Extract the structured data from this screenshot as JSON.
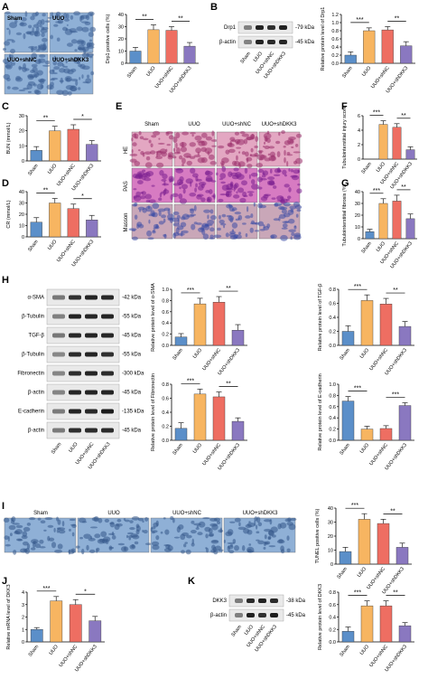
{
  "panels": {
    "A": "A",
    "B": "B",
    "C": "C",
    "D": "D",
    "E": "E",
    "F": "F",
    "G": "G",
    "H": "H",
    "I": "I",
    "J": "J",
    "K": "K"
  },
  "colors": {
    "sham": "#5b8fc9",
    "uuo": "#f7b561",
    "shnc": "#ee6e62",
    "shdkk3": "#8a78c0",
    "stain_blue": "#8fb0d6",
    "he": "#c9709e",
    "masson": "#6c7fb8"
  },
  "groups": [
    "Sham",
    "UUO",
    "UUO+shNC",
    "UUO+shDKK3"
  ],
  "micro_labels": {
    "A": [
      "Sham",
      "UUO",
      "UUO+shNC",
      "UUO+shDKK3"
    ],
    "E_cols": [
      "Sham",
      "UUO",
      "UUO+shNC",
      "UUO+shDKK3"
    ],
    "E_rows": [
      "HE",
      "PAS",
      "Masson"
    ],
    "I": [
      "Sham",
      "UUO",
      "UUO+shNC",
      "UUO+shDKK3"
    ]
  },
  "blots": {
    "B": {
      "rows": [
        {
          "name": "Drp1",
          "kda": "-79 kDa"
        },
        {
          "name": "β-actin",
          "kda": "-45 kDa"
        }
      ]
    },
    "H": {
      "rows": [
        {
          "name": "α-SMA",
          "kda": "-42 kDa"
        },
        {
          "name": "β-Tubulin",
          "kda": "-55 kDa"
        },
        {
          "name": "TGF-β",
          "kda": "-45 kDa"
        },
        {
          "name": "β-Tubulin",
          "kda": "-55 kDa"
        },
        {
          "name": "Fibronectin",
          "kda": "-300 kDa"
        },
        {
          "name": "β-actin",
          "kda": "-45 kDa"
        },
        {
          "name": "E-cadherin",
          "kda": "-135 kDa"
        },
        {
          "name": "β-actin",
          "kda": "-45 kDa"
        }
      ]
    },
    "K": {
      "rows": [
        {
          "name": "DKK3",
          "kda": "-38 kDa"
        },
        {
          "name": "β-actin",
          "kda": "-45 kDa"
        }
      ]
    }
  },
  "chart_data": [
    {
      "id": "A",
      "type": "bar",
      "categories": [
        "Sham",
        "UUO",
        "UUO+shNC",
        "UUO+shDKK3"
      ],
      "values": [
        10,
        27.5,
        27,
        14
      ],
      "errors": [
        3,
        4,
        3,
        3
      ],
      "ylabel": "Drp1 positive cells (%)",
      "ylim": [
        0,
        40
      ],
      "yticks": [
        "0",
        "10",
        "20",
        "30",
        "40"
      ],
      "sig": [
        {
          "a": 0,
          "b": 1,
          "t": "**"
        },
        {
          "a": 2,
          "b": 3,
          "t": "**"
        }
      ]
    },
    {
      "id": "B",
      "type": "bar",
      "categories": [
        "Sham",
        "UUO",
        "UUO+shNC",
        "UUO+shDKK3"
      ],
      "values": [
        0.2,
        0.8,
        0.82,
        0.43
      ],
      "errors": [
        0.08,
        0.07,
        0.08,
        0.1
      ],
      "ylabel": "Relative protein level of Drp1",
      "ylim": [
        0,
        1.2
      ],
      "yticks": [
        "0.0",
        "0.2",
        "0.4",
        "0.6",
        "0.8",
        "1.0",
        "1.2"
      ],
      "sig": [
        {
          "a": 0,
          "b": 1,
          "t": "***"
        },
        {
          "a": 2,
          "b": 3,
          "t": "**"
        }
      ]
    },
    {
      "id": "C",
      "type": "bar",
      "categories": [
        "Sham",
        "UUO",
        "UUO+shNC",
        "UUO+shDKK3"
      ],
      "values": [
        7,
        20,
        21,
        11
      ],
      "errors": [
        2.5,
        3,
        3,
        2.5
      ],
      "ylabel": "BUN (mmol/L)",
      "ylim": [
        0,
        30
      ],
      "yticks": [
        "0",
        "10",
        "20",
        "30"
      ],
      "sig": [
        {
          "a": 0,
          "b": 1,
          "t": "**"
        },
        {
          "a": 2,
          "b": 3,
          "t": "*"
        }
      ]
    },
    {
      "id": "D",
      "type": "bar",
      "categories": [
        "Sham",
        "UUO",
        "UUO+shNC",
        "UUO+shDKK3"
      ],
      "values": [
        13,
        30,
        25,
        15
      ],
      "errors": [
        4,
        4,
        4,
        4
      ],
      "ylabel": "CR (mmol/L)",
      "ylim": [
        0,
        40
      ],
      "yticks": [
        "0",
        "10",
        "20",
        "30",
        "40"
      ],
      "sig": [
        {
          "a": 0,
          "b": 1,
          "t": "**"
        },
        {
          "a": 2,
          "b": 3,
          "t": "*"
        }
      ]
    },
    {
      "id": "F",
      "type": "bar",
      "categories": [
        "Sham",
        "UUO",
        "UUO+shNC",
        "UUO+shDKK3"
      ],
      "values": [
        0,
        4.8,
        4.4,
        1.3
      ],
      "errors": [
        0,
        0.5,
        0.5,
        0.4
      ],
      "ylabel": "Tubulointerstitial injury score",
      "ylim": [
        0,
        6
      ],
      "yticks": [
        "0",
        "2",
        "4",
        "6"
      ],
      "sig": [
        {
          "a": 0,
          "b": 1,
          "t": "***"
        },
        {
          "a": 2,
          "b": 3,
          "t": "**"
        }
      ]
    },
    {
      "id": "G",
      "type": "bar",
      "categories": [
        "Sham",
        "UUO",
        "UUO+shNC",
        "UUO+shDKK3"
      ],
      "values": [
        6,
        30,
        32,
        17
      ],
      "errors": [
        2,
        4,
        5,
        4
      ],
      "ylabel": "Tubulointerstitial fibrosis (%)",
      "ylim": [
        0,
        40
      ],
      "yticks": [
        "0",
        "10",
        "20",
        "30",
        "40"
      ],
      "sig": [
        {
          "a": 0,
          "b": 1,
          "t": "***"
        },
        {
          "a": 2,
          "b": 3,
          "t": "**"
        }
      ]
    },
    {
      "id": "H1",
      "type": "bar",
      "categories": [
        "Sham",
        "UUO",
        "UUO+shNC",
        "UUO+shDKK3"
      ],
      "values": [
        0.15,
        0.74,
        0.77,
        0.27
      ],
      "errors": [
        0.06,
        0.1,
        0.1,
        0.1
      ],
      "ylabel": "Relative protein level of α-SMA",
      "ylim": [
        0,
        1.0
      ],
      "yticks": [
        "0.0",
        "0.2",
        "0.4",
        "0.6",
        "0.8",
        "1.0"
      ],
      "sig": [
        {
          "a": 0,
          "b": 1,
          "t": "***"
        },
        {
          "a": 2,
          "b": 3,
          "t": "**"
        }
      ]
    },
    {
      "id": "H2",
      "type": "bar",
      "categories": [
        "Sham",
        "UUO",
        "UUO+shNC",
        "UUO+shDKK3"
      ],
      "values": [
        0.2,
        0.64,
        0.59,
        0.27
      ],
      "errors": [
        0.08,
        0.08,
        0.08,
        0.07
      ],
      "ylabel": "Relative protein level of TGF-β",
      "ylim": [
        0,
        0.8
      ],
      "yticks": [
        "0.0",
        "0.2",
        "0.4",
        "0.6",
        "0.8"
      ],
      "sig": [
        {
          "a": 0,
          "b": 1,
          "t": "***"
        },
        {
          "a": 2,
          "b": 3,
          "t": "**"
        }
      ]
    },
    {
      "id": "H3",
      "type": "bar",
      "categories": [
        "Sham",
        "UUO",
        "UUO+shNC",
        "UUO+shDKK3"
      ],
      "values": [
        0.17,
        0.66,
        0.62,
        0.27
      ],
      "errors": [
        0.08,
        0.07,
        0.07,
        0.05
      ],
      "ylabel": "Relative protein level of Fibronectin",
      "ylim": [
        0,
        0.8
      ],
      "yticks": [
        "0.0",
        "0.2",
        "0.4",
        "0.6",
        "0.8"
      ],
      "sig": [
        {
          "a": 0,
          "b": 1,
          "t": "***"
        },
        {
          "a": 2,
          "b": 3,
          "t": "**"
        }
      ]
    },
    {
      "id": "H4",
      "type": "bar",
      "categories": [
        "Sham",
        "UUO",
        "UUO+shNC",
        "UUO+shDKK3"
      ],
      "values": [
        0.7,
        0.2,
        0.21,
        0.62
      ],
      "errors": [
        0.08,
        0.05,
        0.05,
        0.05
      ],
      "ylabel": "Relative protein level of E-cadherin",
      "ylim": [
        0,
        1.0
      ],
      "yticks": [
        "0.0",
        "0.2",
        "0.4",
        "0.6",
        "0.8",
        "1.0"
      ],
      "sig": [
        {
          "a": 0,
          "b": 1,
          "t": "***"
        },
        {
          "a": 2,
          "b": 3,
          "t": "***"
        }
      ]
    },
    {
      "id": "I",
      "type": "bar",
      "categories": [
        "Sham",
        "UUO",
        "UUO+shNC",
        "UUO+shDKK3"
      ],
      "values": [
        9,
        32,
        29,
        12
      ],
      "errors": [
        3,
        4,
        3,
        3
      ],
      "ylabel": "TUNEL positive cells (%)",
      "ylim": [
        0,
        40
      ],
      "yticks": [
        "0",
        "10",
        "20",
        "30",
        "40"
      ],
      "sig": [
        {
          "a": 0,
          "b": 1,
          "t": "***"
        },
        {
          "a": 2,
          "b": 3,
          "t": "**"
        }
      ]
    },
    {
      "id": "J",
      "type": "bar",
      "categories": [
        "Sham",
        "UUO",
        "UUO+shNC",
        "UUO+shDKK3"
      ],
      "values": [
        1.0,
        3.3,
        3.0,
        1.7
      ],
      "errors": [
        0.15,
        0.35,
        0.4,
        0.35
      ],
      "ylabel": "Relative mRNA level of DKK3",
      "ylim": [
        0,
        4
      ],
      "yticks": [
        "0",
        "1",
        "2",
        "3",
        "4"
      ],
      "sig": [
        {
          "a": 0,
          "b": 1,
          "t": "***"
        },
        {
          "a": 2,
          "b": 3,
          "t": "*"
        }
      ]
    },
    {
      "id": "K",
      "type": "bar",
      "categories": [
        "Sham",
        "UUO",
        "UUO+shNC",
        "UUO+shDKK3"
      ],
      "values": [
        0.17,
        0.58,
        0.58,
        0.26
      ],
      "errors": [
        0.07,
        0.08,
        0.08,
        0.05
      ],
      "ylabel": "Relative protein level of DKK3",
      "ylim": [
        0,
        0.8
      ],
      "yticks": [
        "0.0",
        "0.2",
        "0.4",
        "0.6",
        "0.8"
      ],
      "sig": [
        {
          "a": 0,
          "b": 1,
          "t": "***"
        },
        {
          "a": 2,
          "b": 3,
          "t": "**"
        }
      ]
    }
  ]
}
